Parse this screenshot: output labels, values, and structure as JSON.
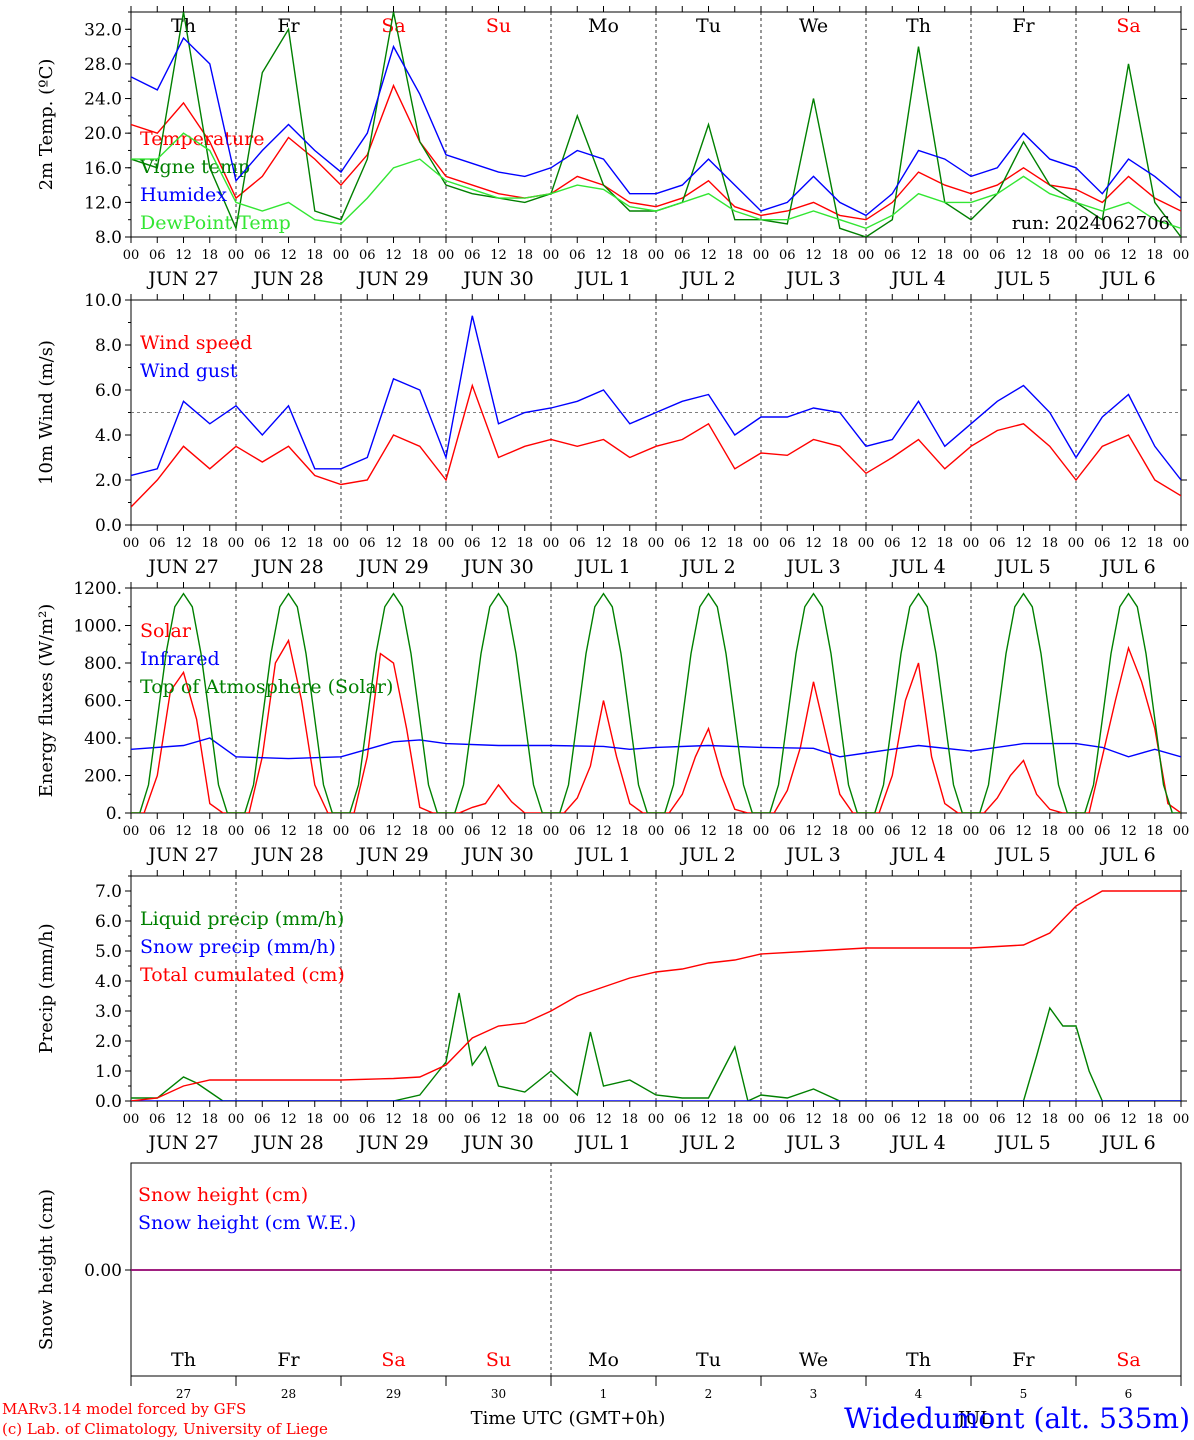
{
  "footer": {
    "model": "MARv3.14 model forced by GFS",
    "credit": "(c) Lab. of Climatology, University of Liege",
    "xlabel": "Time UTC (GMT+0h)",
    "station": "Widedumont (alt. 535m)"
  },
  "colors": {
    "red": "#ff0000",
    "blue": "#0000ff",
    "green": "#008000",
    "lightgreen": "#33e633",
    "weekend": "#ff0000",
    "weekday": "#000000",
    "snowline": "#800080"
  },
  "x_axis": {
    "hour_ticks": [
      "00",
      "06",
      "12",
      "18"
    ],
    "date_labels": [
      "JUN 27",
      "JUN 28",
      "JUN 29",
      "JUN 30",
      "JUL 1",
      "JUL 2",
      "JUL 3",
      "JUL 4",
      "JUL 5",
      "JUL 6"
    ],
    "weekdays": [
      {
        "label": "Th",
        "weekend": false
      },
      {
        "label": "Fr",
        "weekend": false
      },
      {
        "label": "Sa",
        "weekend": true
      },
      {
        "label": "Su",
        "weekend": true
      },
      {
        "label": "Mo",
        "weekend": false
      },
      {
        "label": "Tu",
        "weekend": false
      },
      {
        "label": "We",
        "weekend": false
      },
      {
        "label": "Th",
        "weekend": false
      },
      {
        "label": "Fr",
        "weekend": false
      },
      {
        "label": "Sa",
        "weekend": true
      }
    ],
    "day_numbers": [
      "27",
      "28",
      "29",
      "30",
      "1",
      "2",
      "3",
      "4",
      "5",
      "6"
    ],
    "month_label": "JUL"
  },
  "chart_data": [
    {
      "type": "line",
      "ylabel": "2m Temp. (ºC)",
      "ylim": [
        8,
        34
      ],
      "yticks": [
        "8.0",
        "12.0",
        "16.0",
        "20.0",
        "24.0",
        "28.0",
        "32.0"
      ],
      "run_label": "run: 2024062706",
      "series": [
        {
          "name": "Temperature",
          "color": "red",
          "x": [
            0,
            6,
            12,
            18,
            24,
            30,
            36,
            42,
            48,
            54,
            60,
            66,
            72,
            78,
            84,
            90,
            96,
            102,
            108,
            114,
            120,
            126,
            132,
            138,
            144,
            150,
            156,
            162,
            168,
            174,
            180,
            186,
            192,
            198,
            204,
            210,
            216,
            222,
            228,
            234,
            240
          ],
          "values": [
            21,
            20,
            23.5,
            19,
            12.5,
            15,
            19.5,
            17,
            14,
            17.5,
            25.5,
            19,
            15,
            14,
            13,
            12.5,
            13,
            15,
            14,
            12,
            11.5,
            12.5,
            14.5,
            11.5,
            10.5,
            11,
            12,
            10.5,
            10,
            12,
            15.5,
            14,
            13,
            14,
            16,
            14,
            13.5,
            12,
            15,
            12.5,
            11
          ]
        },
        {
          "name": "Vigne temp",
          "color": "green",
          "x": [
            0,
            6,
            12,
            18,
            24,
            30,
            36,
            42,
            48,
            54,
            60,
            66,
            72,
            78,
            84,
            90,
            96,
            102,
            108,
            114,
            120,
            126,
            132,
            138,
            144,
            150,
            156,
            162,
            168,
            174,
            180,
            186,
            192,
            198,
            204,
            210,
            216,
            222,
            228,
            234,
            240
          ],
          "values": [
            17,
            16,
            34,
            16,
            9,
            27,
            32,
            11,
            10,
            17,
            34,
            19,
            14,
            13,
            12.5,
            12,
            13,
            22,
            14,
            11,
            11,
            12,
            21,
            10,
            10,
            9.5,
            24,
            9,
            8,
            10,
            30,
            12,
            10,
            13,
            19,
            14,
            12,
            10,
            28,
            12,
            8
          ]
        },
        {
          "name": "Humidex",
          "color": "blue",
          "x": [
            0,
            6,
            12,
            18,
            24,
            30,
            36,
            42,
            48,
            54,
            60,
            66,
            72,
            78,
            84,
            90,
            96,
            102,
            108,
            114,
            120,
            126,
            132,
            138,
            144,
            150,
            156,
            162,
            168,
            174,
            180,
            186,
            192,
            198,
            204,
            210,
            216,
            222,
            228,
            234,
            240
          ],
          "values": [
            26.5,
            25,
            31,
            28,
            14.5,
            18,
            21,
            18,
            15.5,
            20,
            30,
            24.5,
            17.5,
            16.5,
            15.5,
            15,
            16,
            18,
            17,
            13,
            13,
            14,
            17,
            14,
            11,
            12,
            15,
            12,
            10.5,
            13,
            18,
            17,
            15,
            16,
            20,
            17,
            16,
            13,
            17,
            15,
            12.5
          ]
        },
        {
          "name": "DewPoint Temp",
          "color": "lightgreen",
          "x": [
            0,
            6,
            12,
            18,
            24,
            30,
            36,
            42,
            48,
            54,
            60,
            66,
            72,
            78,
            84,
            90,
            96,
            102,
            108,
            114,
            120,
            126,
            132,
            138,
            144,
            150,
            156,
            162,
            168,
            174,
            180,
            186,
            192,
            198,
            204,
            210,
            216,
            222,
            228,
            234,
            240
          ],
          "values": [
            17,
            17,
            20,
            18,
            12,
            11,
            12,
            10,
            9.5,
            12.5,
            16,
            17,
            14.5,
            13.5,
            12.5,
            12.5,
            13,
            14,
            13.5,
            11.5,
            11,
            12,
            13,
            11,
            10,
            10,
            11,
            10,
            9,
            10.5,
            13,
            12,
            12,
            13,
            15,
            13,
            12,
            11,
            12,
            10,
            9
          ]
        }
      ]
    },
    {
      "type": "line",
      "ylabel": "10m Wind (m/s)",
      "ylim": [
        0,
        10
      ],
      "yticks": [
        "0.0",
        "2.0",
        "4.0",
        "6.0",
        "8.0",
        "10.0"
      ],
      "reference_line": 5,
      "series": [
        {
          "name": "Wind speed",
          "color": "red",
          "x": [
            0,
            6,
            12,
            18,
            24,
            30,
            36,
            42,
            48,
            54,
            60,
            66,
            72,
            78,
            84,
            90,
            96,
            102,
            108,
            114,
            120,
            126,
            132,
            138,
            144,
            150,
            156,
            162,
            168,
            174,
            180,
            186,
            192,
            198,
            204,
            210,
            216,
            222,
            228,
            234,
            240
          ],
          "values": [
            0.8,
            2,
            3.5,
            2.5,
            3.5,
            2.8,
            3.5,
            2.2,
            1.8,
            2,
            4,
            3.5,
            2,
            6.2,
            3,
            3.5,
            3.8,
            3.5,
            3.8,
            3,
            3.5,
            3.8,
            4.5,
            2.5,
            3.2,
            3.1,
            3.8,
            3.5,
            2.3,
            3,
            3.8,
            2.5,
            3.5,
            4.2,
            4.5,
            3.5,
            2,
            3.5,
            4,
            2,
            1.3
          ]
        },
        {
          "name": "Wind gust",
          "color": "blue",
          "x": [
            0,
            6,
            12,
            18,
            24,
            30,
            36,
            42,
            48,
            54,
            60,
            66,
            72,
            78,
            84,
            90,
            96,
            102,
            108,
            114,
            120,
            126,
            132,
            138,
            144,
            150,
            156,
            162,
            168,
            174,
            180,
            186,
            192,
            198,
            204,
            210,
            216,
            222,
            228,
            234,
            240
          ],
          "values": [
            2.2,
            2.5,
            5.5,
            4.5,
            5.3,
            4,
            5.3,
            2.5,
            2.5,
            3,
            6.5,
            6,
            3,
            9.3,
            4.5,
            5,
            5.2,
            5.5,
            6,
            4.5,
            5,
            5.5,
            5.8,
            4,
            4.8,
            4.8,
            5.2,
            5,
            3.5,
            3.8,
            5.5,
            3.5,
            4.5,
            5.5,
            6.2,
            5,
            3,
            4.8,
            5.8,
            3.5,
            2
          ]
        }
      ]
    },
    {
      "type": "line",
      "ylabel": "Energy fluxes (W/m²)",
      "ylim": [
        0,
        1200
      ],
      "yticks": [
        "0.",
        "200.",
        "400.",
        "600.",
        "800.",
        "1000.",
        "1200."
      ],
      "series": [
        {
          "name": "Solar",
          "color": "red",
          "x": [
            0,
            3,
            6,
            9,
            12,
            15,
            18,
            21,
            24,
            27,
            30,
            33,
            36,
            39,
            42,
            45,
            48,
            51,
            54,
            57,
            60,
            63,
            66,
            69,
            72,
            75,
            78,
            81,
            84,
            87,
            90,
            93,
            96,
            99,
            102,
            105,
            108,
            111,
            114,
            117,
            120,
            123,
            126,
            129,
            132,
            135,
            138,
            141,
            144,
            147,
            150,
            153,
            156,
            159,
            162,
            165,
            168,
            171,
            174,
            177,
            180,
            183,
            186,
            189,
            192,
            195,
            198,
            201,
            204,
            207,
            210,
            213,
            216,
            219,
            222,
            225,
            228,
            231,
            234,
            237,
            240
          ],
          "values": [
            0,
            0,
            200,
            650,
            750,
            500,
            50,
            0,
            0,
            0,
            300,
            800,
            920,
            600,
            150,
            0,
            0,
            0,
            300,
            850,
            800,
            450,
            30,
            0,
            0,
            0,
            30,
            50,
            150,
            60,
            0,
            0,
            0,
            0,
            80,
            250,
            600,
            300,
            50,
            0,
            0,
            0,
            100,
            300,
            450,
            200,
            20,
            0,
            0,
            0,
            120,
            350,
            700,
            400,
            100,
            0,
            0,
            0,
            200,
            600,
            800,
            300,
            50,
            0,
            0,
            0,
            80,
            200,
            280,
            100,
            20,
            0,
            0,
            0,
            300,
            600,
            880,
            700,
            450,
            50,
            0
          ]
        },
        {
          "name": "Infrared",
          "color": "blue",
          "x": [
            0,
            12,
            18,
            24,
            36,
            48,
            60,
            66,
            72,
            84,
            96,
            108,
            114,
            120,
            132,
            144,
            156,
            162,
            168,
            180,
            192,
            204,
            216,
            222,
            228,
            234,
            240
          ],
          "values": [
            340,
            360,
            400,
            300,
            290,
            300,
            380,
            390,
            370,
            360,
            360,
            355,
            340,
            350,
            360,
            350,
            345,
            300,
            320,
            360,
            330,
            370,
            370,
            350,
            300,
            340,
            300
          ]
        },
        {
          "name": "Top of Atmosphere (Solar)",
          "color": "green",
          "x": [
            0,
            2,
            4,
            6,
            8,
            10,
            12,
            14,
            16,
            18,
            20,
            22,
            24
          ],
          "values": [
            0,
            0,
            150,
            500,
            850,
            1100,
            1170,
            1100,
            850,
            500,
            150,
            0,
            0
          ],
          "periodic_hours": 24
        }
      ]
    },
    {
      "type": "line",
      "ylabel": "Precip (mm/h)",
      "ylim": [
        0,
        7.5
      ],
      "yticks": [
        "0.0",
        "1.0",
        "2.0",
        "3.0",
        "4.0",
        "5.0",
        "6.0",
        "7.0"
      ],
      "series": [
        {
          "name": "Liquid precip (mm/h)",
          "color": "green",
          "x": [
            0,
            6,
            12,
            15,
            18,
            21,
            24,
            48,
            60,
            66,
            72,
            75,
            78,
            81,
            84,
            90,
            96,
            102,
            105,
            108,
            114,
            120,
            126,
            132,
            138,
            141,
            144,
            150,
            156,
            162,
            168,
            174,
            180,
            186,
            192,
            198,
            204,
            207,
            210,
            213,
            216,
            219,
            222,
            228,
            240
          ],
          "values": [
            0.1,
            0.1,
            0.8,
            0.6,
            0.3,
            0,
            0,
            0,
            0,
            0.2,
            1.3,
            3.6,
            1.2,
            1.8,
            0.5,
            0.3,
            1,
            0.2,
            2.3,
            0.5,
            0.7,
            0.2,
            0.1,
            0.1,
            1.8,
            0,
            0.2,
            0.1,
            0.4,
            0,
            0,
            0,
            0,
            0,
            0,
            0,
            0,
            1.5,
            3.1,
            2.5,
            2.5,
            1,
            0,
            0,
            0
          ]
        },
        {
          "name": "Snow precip (mm/h)",
          "color": "blue",
          "x": [
            0,
            240
          ],
          "values": [
            0,
            0
          ]
        },
        {
          "name": "Total cumulated (cm)",
          "color": "red",
          "x": [
            0,
            6,
            12,
            18,
            24,
            48,
            60,
            66,
            72,
            78,
            84,
            90,
            96,
            102,
            108,
            114,
            120,
            126,
            132,
            138,
            144,
            156,
            168,
            180,
            192,
            204,
            210,
            216,
            222,
            228,
            240
          ],
          "values": [
            0,
            0.1,
            0.5,
            0.7,
            0.7,
            0.7,
            0.75,
            0.8,
            1.2,
            2.1,
            2.5,
            2.6,
            3,
            3.5,
            3.8,
            4.1,
            4.3,
            4.4,
            4.6,
            4.7,
            4.9,
            5,
            5.1,
            5.1,
            5.1,
            5.2,
            5.6,
            6.5,
            7,
            7,
            7
          ]
        }
      ]
    },
    {
      "type": "line",
      "ylabel": "Snow height (cm)",
      "yticks": [
        "0.00"
      ],
      "series": [
        {
          "name": "Snow height (cm)",
          "color": "red",
          "x": [
            0,
            240
          ],
          "values": [
            0,
            0
          ]
        },
        {
          "name": "Snow height (cm W.E.)",
          "color": "blue",
          "x": [
            0,
            240
          ],
          "values": [
            0,
            0
          ]
        }
      ]
    }
  ]
}
